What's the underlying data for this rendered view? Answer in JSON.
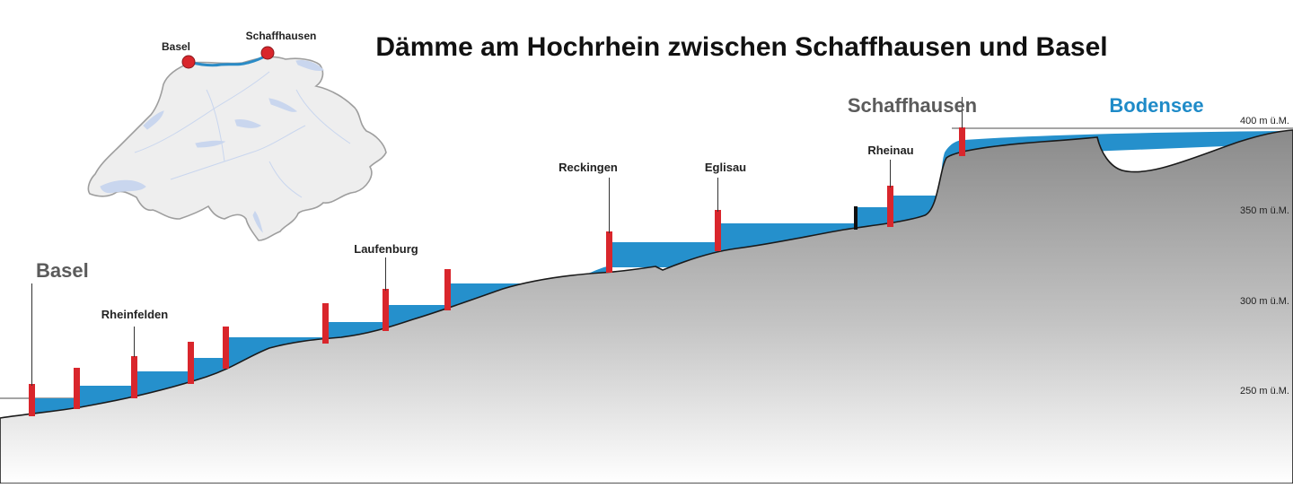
{
  "title": "Dämme am Hochrhein zwischen Schaffhausen und Basel",
  "map": {
    "labels": {
      "basel": "Basel",
      "schaffhausen": "Schaffhausen"
    },
    "colors": {
      "land": "#eeeeee",
      "border": "#9e9e9e",
      "lakes": "#c9d6ee",
      "river": "#2a8bc6",
      "marker": "#d9262c"
    }
  },
  "profile": {
    "start_label": "Basel",
    "end_label": "Schaffhausen",
    "lake_label": "Bodensee",
    "elevation_lines": [
      {
        "value": 400,
        "label": "400 m ü.M."
      },
      {
        "value": 350,
        "label": "350 m ü.M."
      },
      {
        "value": 300,
        "label": "300 m ü.M."
      },
      {
        "value": 250,
        "label": "250 m ü.M."
      }
    ],
    "dam_labels": [
      "Rheinfelden",
      "Laufenburg",
      "Reckingen",
      "Eglisau",
      "Rheinau"
    ],
    "colors": {
      "water": "#2590cc",
      "dam": "#d9262c",
      "terrain_top": "#8d8d8d",
      "terrain_bottom": "#ffffff",
      "line": "#6f6f6f",
      "text": "#222222",
      "lake_text": "#1f8bc8",
      "city_text": "#5b5b5b"
    }
  }
}
